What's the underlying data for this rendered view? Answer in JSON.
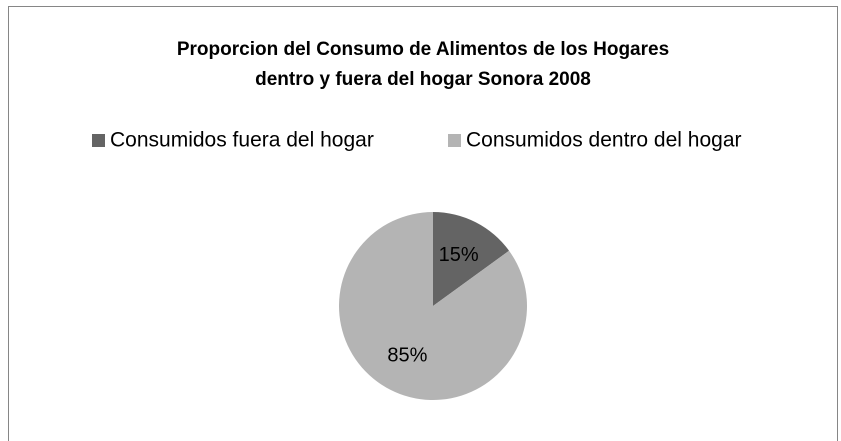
{
  "chart_data": {
    "type": "pie",
    "title": [
      "Proporcion del Consumo de Alimentos de los Hogares",
      "dentro y fuera del hogar Sonora 2008"
    ],
    "categories": [
      "Consumidos fuera del hogar",
      "Consumidos dentro del hogar"
    ],
    "values": [
      15,
      85
    ],
    "value_labels": [
      "15%",
      "85%"
    ],
    "colors": [
      "#646464",
      "#b4b4b4"
    ],
    "legend": "top"
  }
}
